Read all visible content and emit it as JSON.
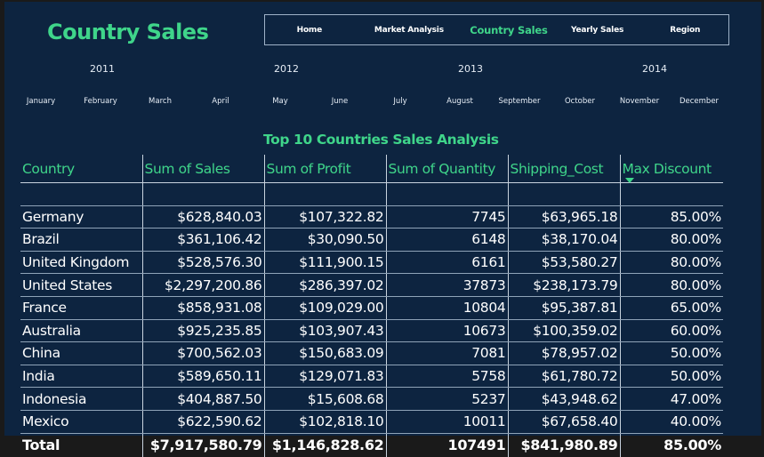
{
  "page": {
    "title": "Country Sales"
  },
  "nav": {
    "items": [
      {
        "label": "Home",
        "active": false
      },
      {
        "label": "Market Analysis",
        "active": false
      },
      {
        "label": "Country Sales",
        "active": true
      },
      {
        "label": "Yearly Sales",
        "active": false
      },
      {
        "label": "Region",
        "active": false
      }
    ]
  },
  "year_slicer": [
    "2011",
    "2012",
    "2013",
    "2014"
  ],
  "month_slicer": [
    "January",
    "February",
    "March",
    "April",
    "May",
    "June",
    "July",
    "August",
    "September",
    "October",
    "November",
    "December"
  ],
  "table": {
    "title": "Top 10 Countries Sales Analysis",
    "columns": [
      "Country",
      "Sum of Sales",
      "Sum of Profit",
      "Sum of Quantity",
      "Shipping_Cost",
      "Max Discount"
    ],
    "sorted_column": "Max Discount",
    "rows": [
      [
        "Germany",
        "$628,840.03",
        "$107,322.82",
        "7745",
        "$63,965.18",
        "85.00%"
      ],
      [
        "Brazil",
        "$361,106.42",
        "$30,090.50",
        "6148",
        "$38,170.04",
        "80.00%"
      ],
      [
        "United Kingdom",
        "$528,576.30",
        "$111,900.15",
        "6161",
        "$53,580.27",
        "80.00%"
      ],
      [
        "United States",
        "$2,297,200.86",
        "$286,397.02",
        "37873",
        "$238,173.79",
        "80.00%"
      ],
      [
        "France",
        "$858,931.08",
        "$109,029.00",
        "10804",
        "$95,387.81",
        "65.00%"
      ],
      [
        "Australia",
        "$925,235.85",
        "$103,907.43",
        "10673",
        "$100,359.02",
        "60.00%"
      ],
      [
        "China",
        "$700,562.03",
        "$150,683.09",
        "7081",
        "$78,957.02",
        "50.00%"
      ],
      [
        "India",
        "$589,650.11",
        "$129,071.83",
        "5758",
        "$61,780.72",
        "50.00%"
      ],
      [
        "Indonesia",
        "$404,887.50",
        "$15,608.68",
        "5237",
        "$43,948.62",
        "47.00%"
      ],
      [
        "Mexico",
        "$622,590.62",
        "$102,818.10",
        "10011",
        "$67,658.40",
        "40.00%"
      ]
    ],
    "total": [
      "Total",
      "$7,917,580.79",
      "$1,146,828.62",
      "107491",
      "$841,980.89",
      "85.00%"
    ]
  },
  "colors": {
    "accent": "#3fd58a",
    "background": "#0d2440",
    "text": "#ffffff"
  }
}
